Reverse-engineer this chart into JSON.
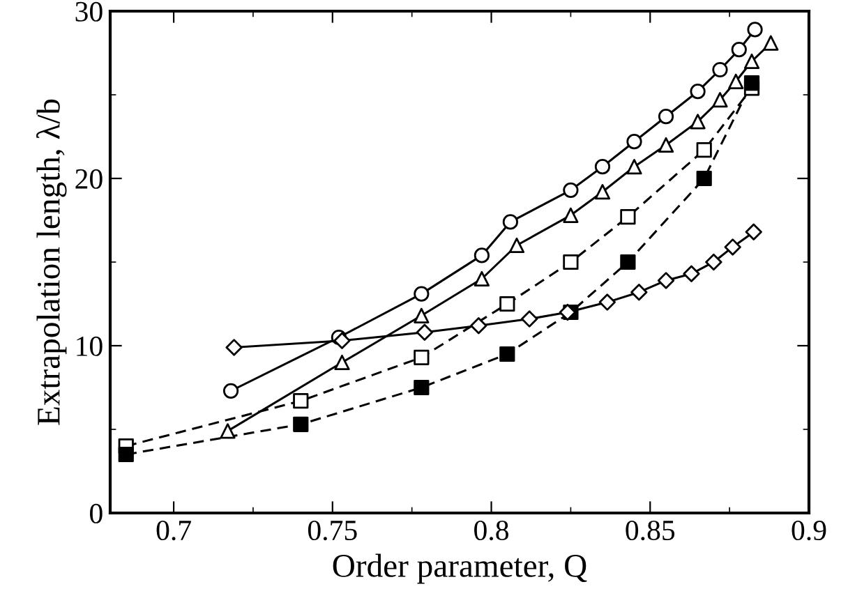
{
  "chart_data": {
    "type": "line",
    "xlabel": "Order parameter, Q",
    "ylabel": "Extrapolation length, λ/b",
    "xlim": [
      0.68,
      0.9
    ],
    "ylim": [
      0,
      30
    ],
    "xticks": [
      0.7,
      0.75,
      0.8,
      0.85,
      0.9
    ],
    "yticks": [
      0,
      10,
      20,
      30
    ],
    "grid": false,
    "legend": false,
    "series": [
      {
        "color": "#000000",
        "marker": "circle",
        "line_style": "solid",
        "x": [
          0.718,
          0.752,
          0.778,
          0.797,
          0.806,
          0.825,
          0.835,
          0.845,
          0.855,
          0.865,
          0.872,
          0.878,
          0.883
        ],
        "values": [
          7.3,
          10.5,
          13.1,
          15.4,
          17.4,
          19.3,
          20.7,
          22.2,
          23.7,
          25.2,
          26.5,
          27.7,
          28.9
        ]
      },
      {
        "color": "#000000",
        "marker": "triangle",
        "line_style": "solid",
        "x": [
          0.717,
          0.753,
          0.778,
          0.797,
          0.808,
          0.825,
          0.835,
          0.845,
          0.855,
          0.865,
          0.872,
          0.877,
          0.882,
          0.888
        ],
        "values": [
          4.9,
          9.0,
          11.8,
          14.0,
          16.0,
          17.8,
          19.2,
          20.7,
          22.0,
          23.4,
          24.7,
          25.8,
          27.0,
          28.1
        ]
      },
      {
        "color": "#000000",
        "marker": "square",
        "line_style": "dashed",
        "x": [
          0.685,
          0.74,
          0.778,
          0.805,
          0.825,
          0.843,
          0.867,
          0.882
        ],
        "values": [
          4.0,
          6.7,
          9.3,
          12.5,
          15.0,
          17.7,
          21.7,
          25.4
        ]
      },
      {
        "color": "#000000",
        "marker": "square",
        "colors": [
          "#000000",
          "#000000",
          "#000000",
          "#000000",
          "#000000",
          "#000000",
          "#000000",
          "#000000"
        ],
        "line_style": "dashed",
        "x": [
          0.685,
          0.74,
          0.778,
          0.805,
          0.825,
          0.843,
          0.867,
          0.882
        ],
        "values": [
          3.5,
          5.3,
          7.5,
          9.5,
          12.0,
          15.0,
          20.0,
          25.7
        ]
      },
      {
        "color": "#000000",
        "marker": "diamond",
        "line_style": "solid",
        "x": [
          0.719,
          0.753,
          0.779,
          0.796,
          0.812,
          0.824,
          0.8365,
          0.8465,
          0.855,
          0.863,
          0.87,
          0.876,
          0.8826
        ],
        "values": [
          9.9,
          10.3,
          10.8,
          11.2,
          11.6,
          12.0,
          12.6,
          13.2,
          13.9,
          14.3,
          15.0,
          15.9,
          16.8
        ]
      }
    ]
  }
}
